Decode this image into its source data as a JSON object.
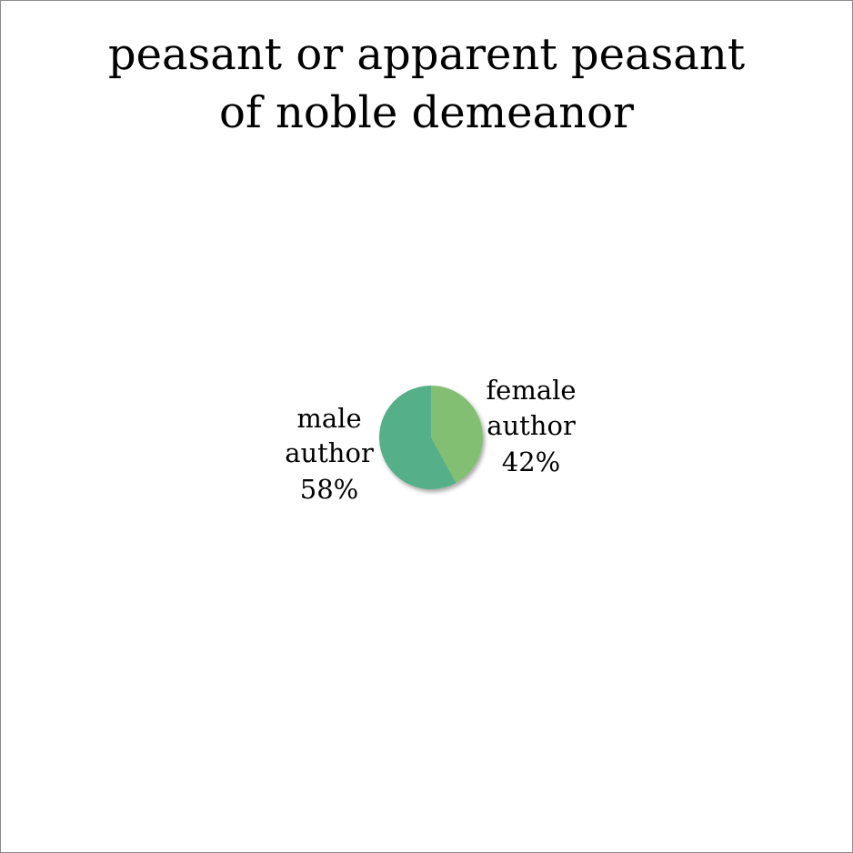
{
  "chart_data": {
    "type": "pie",
    "title_lines": [
      "peasant or apparent peasant",
      "of noble demeanor"
    ],
    "categories": [
      "female author",
      "male author"
    ],
    "values": [
      42,
      58
    ],
    "colors": [
      "#82bf72",
      "#55b08a"
    ],
    "labels": [
      {
        "lines": [
          "female",
          "author"
        ],
        "percent": "42%"
      },
      {
        "lines": [
          "male",
          "author"
        ],
        "percent": "58%"
      }
    ],
    "legend": "none"
  }
}
